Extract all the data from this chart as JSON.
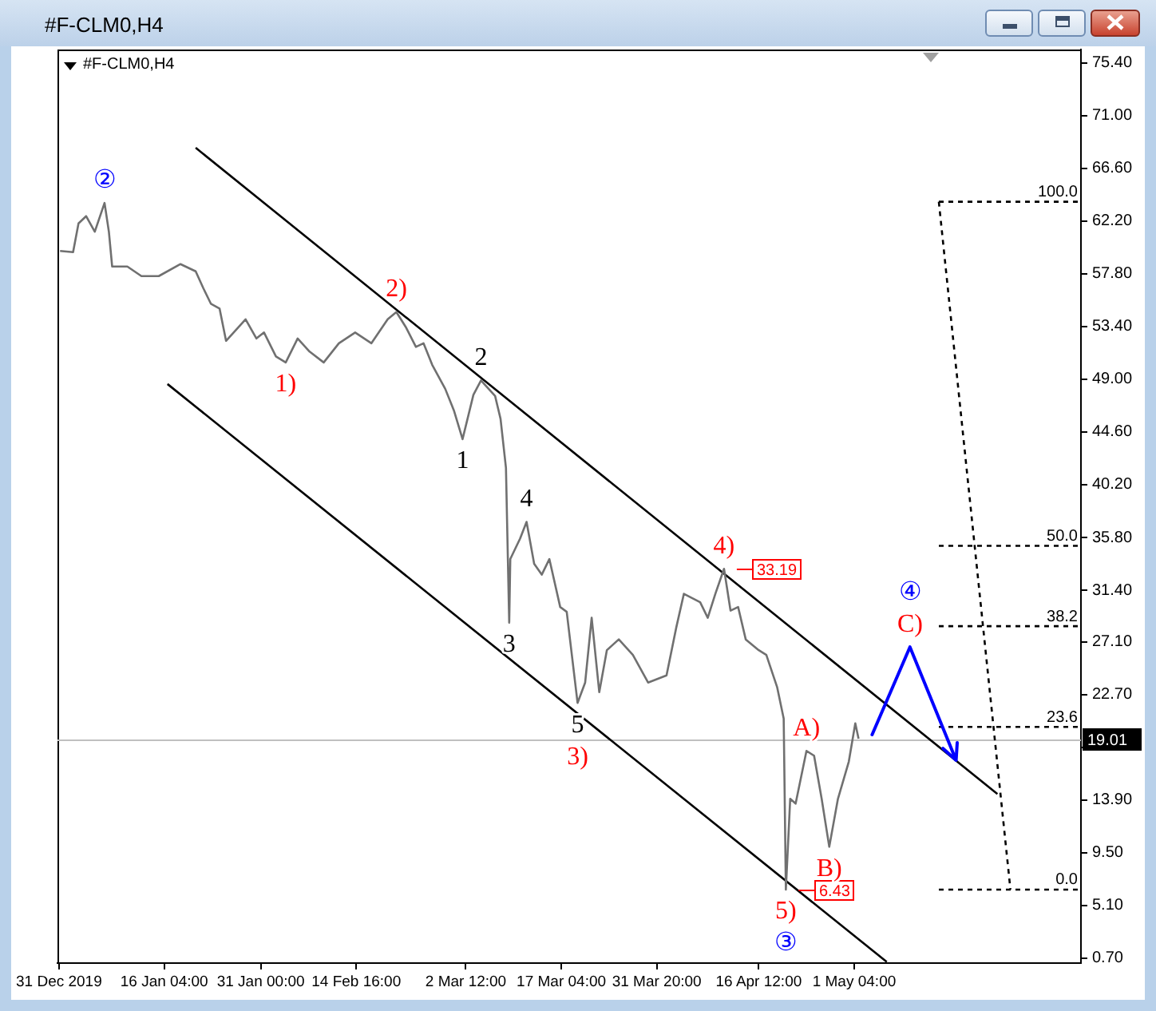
{
  "chart_data": {
    "type": "line",
    "title": "#F-CLM0,H4",
    "subtitle": "#F-CLM0,H4",
    "x": [
      "2019-12-31T04:00",
      "2020-01-02T04:00",
      "2020-01-03T00:00",
      "2020-01-04T04:00",
      "2020-01-05T12:00",
      "2020-01-07T00:00",
      "2020-01-07T16:00",
      "2020-01-08T04:00",
      "2020-01-10T12:00",
      "2020-01-12T16:00",
      "2020-01-15T08:00",
      "2020-01-18T16:00",
      "2020-01-21T00:00",
      "2020-01-22T04:00",
      "2020-01-23T08:00",
      "2020-01-24T16:00",
      "2020-01-25T16:00",
      "2020-01-28T16:00",
      "2020-01-30T08:00",
      "2020-01-31T12:00",
      "2020-02-02T08:00",
      "2020-02-03T20:00",
      "2020-02-05T16:00",
      "2020-02-07T12:00",
      "2020-02-09T16:00",
      "2020-02-12T00:00",
      "2020-02-14T12:00",
      "2020-02-17T00:00",
      "2020-02-19T12:00",
      "2020-02-20T20:00",
      "2020-02-22T08:00",
      "2020-02-23T20:00",
      "2020-02-25T00:00",
      "2020-02-26T08:00",
      "2020-02-28T08:00",
      "2020-02-29T16:00",
      "2020-03-02T00:00",
      "2020-03-03T16:00",
      "2020-03-04T20:00",
      "2020-03-06T00:00",
      "2020-03-07T00:00",
      "2020-03-07T20:00",
      "2020-03-08T16:00",
      "2020-03-09T04:00",
      "2020-03-09T08:00",
      "2020-03-10T20:00",
      "2020-03-11T20:00",
      "2020-03-13T00:00",
      "2020-03-14T04:00",
      "2020-03-15T08:00",
      "2020-03-17T00:00",
      "2020-03-18T00:00",
      "2020-03-19T16:00",
      "2020-03-20T20:00",
      "2020-03-21T20:00",
      "2020-03-23T00:00",
      "2020-03-24T04:00",
      "2020-03-26T00:00",
      "2020-03-28T04:00",
      "2020-03-30T12:00",
      "2020-04-02T08:00",
      "2020-04-03T20:00",
      "2020-04-05T00:00",
      "2020-04-07T12:00",
      "2020-04-08T16:00",
      "2020-04-09T20:00",
      "2020-04-11T04:00",
      "2020-04-12T04:00",
      "2020-04-13T08:00",
      "2020-04-14T12:00",
      "2020-04-16T12:00",
      "2020-04-17T16:00",
      "2020-04-19T08:00",
      "2020-04-20T08:00",
      "2020-04-20T16:00",
      "2020-04-21T08:00",
      "2020-04-22T04:00",
      "2020-04-23T20:00",
      "2020-04-25T00:00",
      "2020-04-26T04:00",
      "2020-04-27T08:00",
      "2020-04-28T16:00",
      "2020-04-30T08:00",
      "2020-05-01T08:00",
      "2020-05-01T20:00"
    ],
    "xlim": [
      "2019-12-30T18:00",
      "2020-06-05T00:00"
    ],
    "xticks": [
      {
        "value": "2019-12-31",
        "label": "31 Dec 2019"
      },
      {
        "value": "2020-01-16T04:00",
        "label": "16 Jan 04:00"
      },
      {
        "value": "2020-01-31T00:00",
        "label": "31 Jan 00:00"
      },
      {
        "value": "2020-02-14T16:00",
        "label": "14 Feb 16:00"
      },
      {
        "value": "2020-03-02T12:00",
        "label": "2 Mar 12:00"
      },
      {
        "value": "2020-03-17T04:00",
        "label": "17 Mar 04:00"
      },
      {
        "value": "2020-03-31T20:00",
        "label": "31 Mar 20:00"
      },
      {
        "value": "2020-04-16T12:00",
        "label": "16 Apr 12:00"
      },
      {
        "value": "2020-05-01T04:00",
        "label": "1 May 04:00"
      }
    ],
    "ylim": [
      0.3,
      76.5
    ],
    "yticks": [
      {
        "value": 75.4,
        "label": "75.40"
      },
      {
        "value": 71,
        "label": "71.00"
      },
      {
        "value": 66.6,
        "label": "66.60"
      },
      {
        "value": 62.2,
        "label": "62.20"
      },
      {
        "value": 57.8,
        "label": "57.80"
      },
      {
        "value": 53.4,
        "label": "53.40"
      },
      {
        "value": 49,
        "label": "49.00"
      },
      {
        "value": 44.6,
        "label": "44.60"
      },
      {
        "value": 40.2,
        "label": "40.20"
      },
      {
        "value": 35.8,
        "label": "35.80"
      },
      {
        "value": 31.4,
        "label": "31.40"
      },
      {
        "value": 27.1,
        "label": "27.10"
      },
      {
        "value": 22.7,
        "label": "22.70"
      },
      {
        "value": 18.3,
        "label": null
      },
      {
        "value": 13.9,
        "label": "13.90"
      },
      {
        "value": 9.5,
        "label": "9.50"
      },
      {
        "value": 5.1,
        "label": "5.10"
      },
      {
        "value": 0.7,
        "label": "0.70"
      }
    ],
    "series": [
      {
        "color": "#707070",
        "values": [
          59.7,
          59.6,
          62.0,
          62.6,
          61.3,
          63.7,
          61.3,
          58.4,
          58.4,
          57.6,
          57.6,
          58.6,
          58.0,
          56.6,
          55.3,
          54.9,
          52.2,
          54.0,
          52.4,
          52.9,
          50.9,
          50.4,
          52.4,
          51.3,
          50.4,
          52.0,
          52.9,
          52.0,
          54.0,
          54.6,
          53.3,
          51.7,
          52.0,
          50.2,
          48.2,
          46.4,
          44.0,
          47.7,
          48.9,
          48.2,
          47.6,
          45.7,
          41.6,
          28.7,
          34.0,
          35.7,
          37.1,
          33.6,
          32.7,
          34.0,
          30.0,
          29.6,
          22.0,
          23.7,
          29.1,
          22.9,
          26.4,
          27.3,
          26.0,
          23.7,
          24.3,
          28.3,
          31.1,
          30.4,
          29.1,
          31.1,
          33.19,
          29.7,
          30.0,
          27.3,
          26.4,
          26.0,
          23.3,
          20.7,
          6.43,
          14.0,
          13.6,
          18.0,
          17.6,
          14.0,
          10.0,
          14.0,
          17.1,
          20.3,
          19.01
        ],
        "value_labels": [
          null,
          null,
          null,
          null,
          null,
          null,
          null,
          null,
          null,
          null,
          null,
          null,
          null,
          null,
          null,
          null,
          null,
          null,
          null,
          null,
          null,
          null,
          null,
          null,
          null,
          null,
          null,
          null,
          null,
          null,
          null,
          null,
          null,
          null,
          null,
          null,
          null,
          null,
          null,
          null,
          null,
          null,
          null,
          null,
          null,
          null,
          null,
          null,
          null,
          null,
          null,
          null,
          null,
          null,
          null,
          null,
          null,
          null,
          null,
          null,
          null,
          null,
          null,
          null,
          null,
          null,
          "33.19",
          null,
          null,
          null,
          null,
          null,
          null,
          null,
          "6.43",
          null,
          null,
          null,
          null,
          null,
          null,
          null,
          null,
          null,
          null
        ]
      },
      {
        "color": "#000000",
        "x": [
          "2020-01-21T00:00",
          "2020-05-23T04:00"
        ],
        "values": [
          68.3,
          14.4
        ]
      },
      {
        "color": "#000000",
        "x": [
          "2020-01-16T16:00",
          "2020-05-06T04:00"
        ],
        "values": [
          48.6,
          0.4
        ]
      },
      {
        "color": "#000000",
        "line_style": "dashed",
        "x": [
          "2020-05-14T04:00",
          "2020-05-25T04:00"
        ],
        "values": [
          63.8,
          6.43
        ]
      },
      {
        "color": "#000000",
        "line_style": "dashed",
        "x": [
          "2020-05-14T04:00",
          "2020-06-05T00:00"
        ],
        "values": [
          63.8,
          63.8
        ]
      },
      {
        "color": "#000000",
        "line_style": "dashed",
        "x": [
          "2020-05-14T04:00",
          "2020-06-05T00:00"
        ],
        "values": [
          35.1,
          35.1
        ]
      },
      {
        "color": "#000000",
        "line_style": "dashed",
        "x": [
          "2020-05-14T04:00",
          "2020-06-05T00:00"
        ],
        "values": [
          28.4,
          28.4
        ]
      },
      {
        "color": "#000000",
        "line_style": "dashed",
        "x": [
          "2020-05-14T04:00",
          "2020-06-05T00:00"
        ],
        "values": [
          20.0,
          20.0
        ]
      },
      {
        "color": "#000000",
        "line_style": "dashed",
        "x": [
          "2020-05-14T04:00",
          "2020-06-05T00:00"
        ],
        "values": [
          6.43,
          6.43
        ]
      }
    ],
    "ref_lines": [
      {
        "axis": "y",
        "value": 19.01,
        "label": "19.01",
        "color": "#c0c0c0"
      }
    ],
    "annotations": [
      {
        "text": "②",
        "x": "2020-01-07T00:00",
        "y": 63.7
      },
      {
        "text": "1)",
        "x": "2020-02-03T20:00",
        "y": 50.4
      },
      {
        "text": "2)",
        "x": "2020-02-20T20:00",
        "y": 54.6
      },
      {
        "text": "1",
        "x": "2020-03-02T00:00",
        "y": 44.0
      },
      {
        "text": "2",
        "x": "2020-03-04T20:00",
        "y": 48.9
      },
      {
        "text": "3",
        "x": "2020-03-09T04:00",
        "y": 28.7
      },
      {
        "text": "4",
        "x": "2020-03-11T20:00",
        "y": 37.1
      },
      {
        "text": "5",
        "x": "2020-03-19T16:00",
        "y": 22.0
      },
      {
        "text": "3)",
        "x": "2020-03-19T16:00",
        "y": 22.0
      },
      {
        "text": "4)",
        "x": "2020-04-11T04:00",
        "y": 33.19
      },
      {
        "text": "A)",
        "x": "2020-04-23T20:00",
        "y": 18.0
      },
      {
        "text": "B)",
        "x": "2020-04-27T08:00",
        "y": 10.0
      },
      {
        "text": "5)",
        "x": "2020-04-20T16:00",
        "y": 6.43
      },
      {
        "text": "③",
        "x": "2020-04-20T16:00",
        "y": 6.43
      },
      "C)",
      "④",
      {
        "text": "100.0",
        "x": "2020-06-05T00:00",
        "y": 63.8
      },
      {
        "text": "50.0",
        "x": "2020-06-05T00:00",
        "y": 35.1
      },
      {
        "text": "38.2",
        "x": "2020-06-05T00:00",
        "y": 28.4
      },
      {
        "text": "23.6",
        "x": "2020-06-05T00:00",
        "y": 20.0
      },
      {
        "text": "0.0",
        "x": "2020-06-05T00:00",
        "y": 6.43
      }
    ],
    "grid": false,
    "legend": false,
    "marker": "none"
  }
}
